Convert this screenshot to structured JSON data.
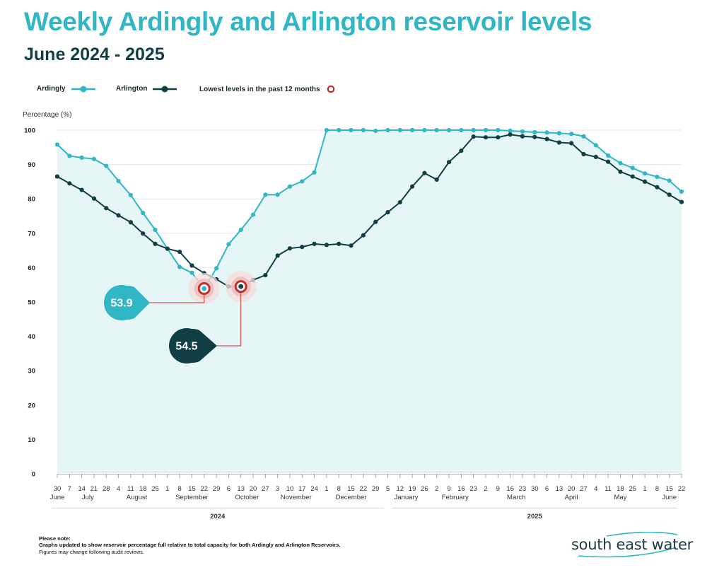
{
  "title": "Weekly Ardingly and Arlington reservoir levels",
  "subtitle": "June 2024 - 2025",
  "colors": {
    "ardingly": "#30b6c4",
    "arlington": "#123f46",
    "lowest": "#c0302d",
    "fill": "#e6f5f6",
    "grid": "#e4e8e8"
  },
  "legend": {
    "ardingly": "Ardingly",
    "arlington": "Arlington",
    "lowest": "Lowest levels in the past 12 months"
  },
  "footnote": {
    "heading": "Please note:",
    "line1": "Graphs updated to show reservoir percentage full relative to total capacity for both Ardingly and Arlington Reservoirs.",
    "line2": "Figures may change following audit reviews."
  },
  "logo": "south east water",
  "chart_data": {
    "type": "line",
    "title": "Weekly Ardingly and Arlington reservoir levels",
    "ylabel": "Percentage (%)",
    "ylim": [
      0,
      100
    ],
    "yticks": [
      0,
      10,
      20,
      30,
      40,
      50,
      60,
      70,
      80,
      90,
      100
    ],
    "grid": true,
    "x_day_labels": [
      "30",
      "7",
      "14",
      "21",
      "28",
      "4",
      "11",
      "18",
      "25",
      "1",
      "8",
      "15",
      "22",
      "29",
      "6",
      "13",
      "20",
      "27",
      "3",
      "10",
      "17",
      "24",
      "1",
      "8",
      "15",
      "22",
      "29",
      "5",
      "12",
      "19",
      "26",
      "2",
      "9",
      "16",
      "23",
      "2",
      "9",
      "16",
      "23",
      "30",
      "6",
      "13",
      "20",
      "27",
      "4",
      "11",
      "18",
      "25",
      "1",
      "8",
      "15",
      "22"
    ],
    "months": [
      {
        "label": "June",
        "index": 0
      },
      {
        "label": "July",
        "index": 2.5
      },
      {
        "label": "August",
        "index": 6.5
      },
      {
        "label": "September",
        "index": 11
      },
      {
        "label": "October",
        "index": 15.5
      },
      {
        "label": "November",
        "index": 19.5
      },
      {
        "label": "December",
        "index": 24
      },
      {
        "label": "January",
        "index": 28.5
      },
      {
        "label": "February",
        "index": 32.5
      },
      {
        "label": "March",
        "index": 37.5
      },
      {
        "label": "April",
        "index": 42
      },
      {
        "label": "May",
        "index": 46
      },
      {
        "label": "June",
        "index": 50
      }
    ],
    "years": [
      {
        "label": "2024",
        "from": 0,
        "to": 27
      },
      {
        "label": "2025",
        "from": 27,
        "to": 51
      }
    ],
    "series": [
      {
        "name": "Ardingly",
        "values": [
          95.8,
          92.5,
          92.0,
          91.6,
          89.6,
          85.2,
          81.1,
          75.9,
          71.0,
          65.5,
          60.2,
          58.5,
          53.9,
          59.8,
          66.8,
          71.0,
          75.4,
          81.2,
          81.2,
          83.6,
          85.1,
          87.7,
          100.0,
          100.0,
          100.0,
          100.0,
          99.8,
          100.0,
          100.0,
          100.0,
          100.0,
          100.0,
          100.0,
          100.0,
          100.0,
          100.0,
          100.0,
          99.8,
          99.6,
          99.4,
          99.3,
          99.1,
          98.9,
          98.2,
          95.6,
          92.6,
          90.4,
          89.0,
          87.4,
          86.4,
          85.3,
          82.1
        ]
      },
      {
        "name": "Arlington",
        "values": [
          86.5,
          84.5,
          82.6,
          80.1,
          77.3,
          75.2,
          73.2,
          69.9,
          66.9,
          65.5,
          64.6,
          60.6,
          58.4,
          56.6,
          54.5,
          54.5,
          56.4,
          57.8,
          63.5,
          65.6,
          66.0,
          66.9,
          66.6,
          66.9,
          66.4,
          69.4,
          73.3,
          76.1,
          79.0,
          83.6,
          87.5,
          85.6,
          90.7,
          94.0,
          98.1,
          97.9,
          97.9,
          98.7,
          98.2,
          98.0,
          97.4,
          96.4,
          96.2,
          93.0,
          92.2,
          90.8,
          87.9,
          86.5,
          85.0,
          83.4,
          81.2,
          79.1
        ]
      }
    ],
    "lowest": [
      {
        "series": "Ardingly",
        "index": 12,
        "value": 53.9,
        "label": "53.9"
      },
      {
        "series": "Arlington",
        "index": 15,
        "value": 54.5,
        "label": "54.5"
      }
    ]
  }
}
